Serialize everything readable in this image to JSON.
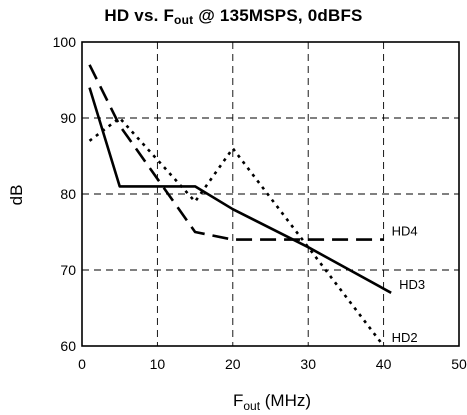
{
  "chart_data": {
    "type": "line",
    "title_main": "HD vs. F",
    "title_sub": "out",
    "title_tail": " @ 135MSPS, 0dBFS",
    "xlabel_main": "F",
    "xlabel_sub": "out",
    "xlabel_tail": " (MHz)",
    "ylabel": "dB",
    "xlim": [
      0,
      50
    ],
    "ylim": [
      60,
      100
    ],
    "xticks": [
      0,
      10,
      20,
      30,
      40,
      50
    ],
    "yticks": [
      60,
      70,
      80,
      90,
      100
    ],
    "grid": true,
    "series": [
      {
        "name": "HD2",
        "style": "dotted",
        "x": [
          1,
          5,
          15,
          20,
          40
        ],
        "y": [
          87,
          90,
          79,
          86,
          60
        ]
      },
      {
        "name": "HD3",
        "style": "solid",
        "x": [
          1,
          5,
          15,
          20,
          30,
          41
        ],
        "y": [
          94,
          81,
          81,
          78,
          73,
          67
        ]
      },
      {
        "name": "HD4",
        "style": "dashed",
        "x": [
          1,
          5,
          15,
          20,
          40
        ],
        "y": [
          97,
          89,
          75,
          74,
          74
        ]
      }
    ],
    "colors": {
      "line": "#000000",
      "grid": "#000000",
      "background": "#ffffff"
    }
  }
}
